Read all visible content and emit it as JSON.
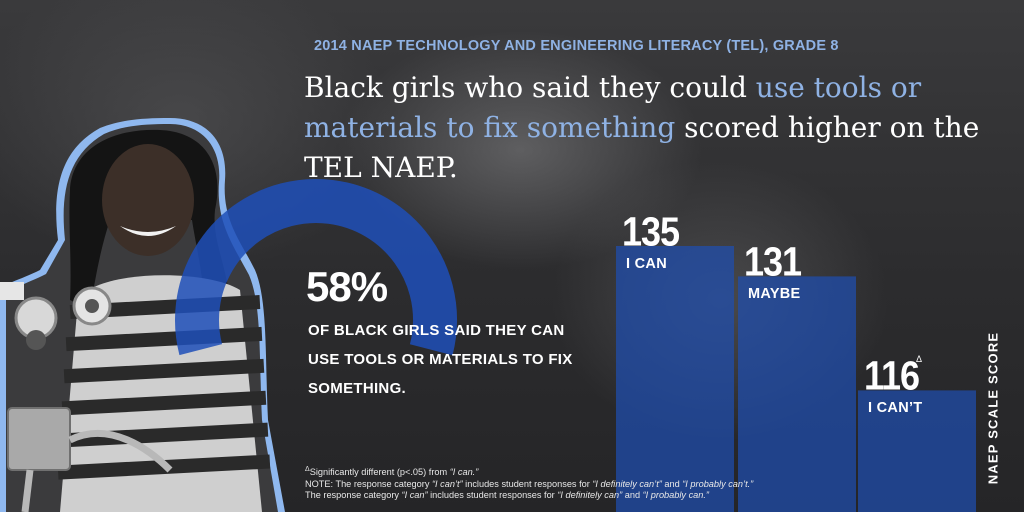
{
  "header": {
    "eyebrow": "2014 NAEP TECHNOLOGY AND ENGINEERING LITERACY (TEL), GRADE 8",
    "headline_part1": "Black girls who said they could ",
    "headline_highlight": "use tools or materials to fix something",
    "headline_part2": " scored higher on the TEL NAEP."
  },
  "stat": {
    "value": "58%",
    "label": "OF BLACK GIRLS SAID THEY CAN USE TOOLS OR MATERIALS TO FIX SOMETHING."
  },
  "chart_data": {
    "type": "bar",
    "categories": [
      "I CAN",
      "MAYBE",
      "I CAN’T"
    ],
    "values": [
      135,
      131,
      116
    ],
    "value_labels": [
      "135",
      "131",
      "116"
    ],
    "significance_marker": [
      "",
      "",
      "Δ"
    ],
    "ylabel": "NAEP SCALE SCORE",
    "donut_percent": 58,
    "colors": {
      "bar": "#1e4db0",
      "donut": "#1f4fb8",
      "accent_text": "#8fb2e4",
      "photo_outline": "#8fb8ef"
    }
  },
  "footnotes": {
    "line1_pre": "Significantly different (p<.05) from ",
    "line1_em": "“I can.”",
    "line2_pre": "NOTE: The response category ",
    "line2_em1": "“I can’t”",
    "line2_mid": " includes student responses for ",
    "line2_em2": "“I definitely can’t”",
    "line2_and": " and ",
    "line2_em3": "“I probably can’t.”",
    "line3_pre": "The response category ",
    "line3_em1": "“I can”",
    "line3_mid": " includes student responses for ",
    "line3_em2": "“I definitely can”",
    "line3_and": " and ",
    "line3_em3": "“I probably can.”",
    "marker": "Δ"
  }
}
